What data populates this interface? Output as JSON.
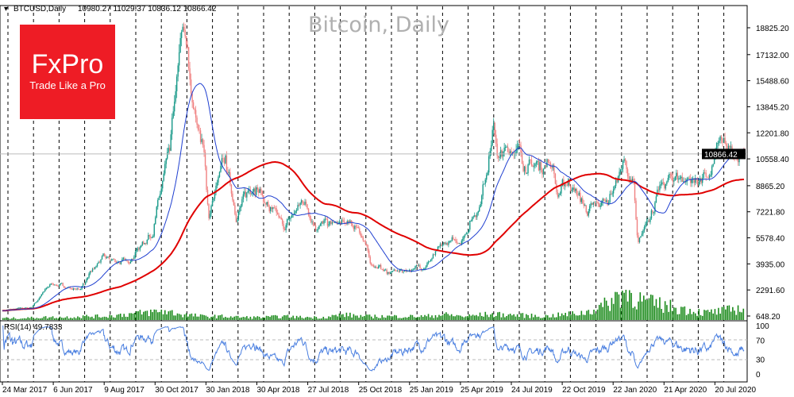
{
  "header": {
    "symbol": "BTCUSD,Daily",
    "ohlc": "10980.27 11029.37 10836.12 10866.42"
  },
  "logo": {
    "brand": "FxPro",
    "tagline": "Trade Like a Pro",
    "color": "#ee1c25"
  },
  "chart_data": {
    "type": "candlestick",
    "title": "Bitcoin, Daily",
    "symbol": "BTCUSD",
    "timeframe": "Daily",
    "current_price": "10866.42",
    "current_price_value": 10866.42,
    "ylim": [
      648.2,
      19671
    ],
    "y_ticks": [
      "18825.20",
      "17132.00",
      "15488.60",
      "13845.20",
      "12201.80",
      "10558.40",
      "8865.20",
      "7221.80",
      "5578.40",
      "3935.00",
      "2291.60",
      "648.20"
    ],
    "x_ticks": [
      "24 Mar 2017",
      "6 Jun 2017",
      "9 Aug 2017",
      "30 Oct 2017",
      "30 Jan 2018",
      "30 Apr 2018",
      "27 Jul 2018",
      "25 Oct 2018",
      "25 Jan 2019",
      "25 Apr 2019",
      "24 Jul 2019",
      "22 Oct 2019",
      "22 Jan 2020",
      "21 Apr 2020",
      "20 Jul 2020"
    ],
    "total_days": 1250,
    "close_anchors_day_price": [
      [
        0,
        1000
      ],
      [
        3,
        1000
      ],
      [
        49,
        1200
      ],
      [
        82,
        2700
      ],
      [
        129,
        2300
      ],
      [
        169,
        4300
      ],
      [
        209,
        4000
      ],
      [
        253,
        6000
      ],
      [
        282,
        11000
      ],
      [
        305,
        19000
      ],
      [
        322,
        14000
      ],
      [
        339,
        11000
      ],
      [
        348,
        7000
      ],
      [
        375,
        10500
      ],
      [
        395,
        7000
      ],
      [
        424,
        9200
      ],
      [
        448,
        7500
      ],
      [
        475,
        6200
      ],
      [
        508,
        8000
      ],
      [
        528,
        6400
      ],
      [
        581,
        6400
      ],
      [
        601,
        6300
      ],
      [
        621,
        4000
      ],
      [
        648,
        3400
      ],
      [
        680,
        3500
      ],
      [
        714,
        3900
      ],
      [
        747,
        5200
      ],
      [
        774,
        5500
      ],
      [
        807,
        8000
      ],
      [
        827,
        12500
      ],
      [
        837,
        10500
      ],
      [
        861,
        11500
      ],
      [
        887,
        10000
      ],
      [
        927,
        10400
      ],
      [
        935,
        8200
      ],
      [
        954,
        9200
      ],
      [
        987,
        7200
      ],
      [
        1020,
        8000
      ],
      [
        1047,
        10300
      ],
      [
        1064,
        8800
      ],
      [
        1071,
        4900
      ],
      [
        1087,
        6800
      ],
      [
        1113,
        8800
      ],
      [
        1133,
        9500
      ],
      [
        1166,
        9200
      ],
      [
        1193,
        9300
      ],
      [
        1206,
        11300
      ],
      [
        1226,
        11600
      ],
      [
        1240,
        10300
      ],
      [
        1246,
        10866.42
      ]
    ],
    "moving_averages": [
      {
        "name": "MA long",
        "period": 200,
        "color": "#e00000"
      },
      {
        "name": "MA short",
        "period": 50,
        "color": "#1f3fd0"
      }
    ],
    "volume_relative": [
      0.1,
      0.1,
      0.15,
      0.15,
      0.2,
      0.2,
      0.3,
      0.4,
      0.5,
      0.3,
      0.2,
      0.2,
      0.15,
      0.15,
      0.2,
      0.15,
      0.15,
      0.3,
      0.2,
      0.2,
      0.2,
      0.2,
      0.3,
      0.2,
      0.3,
      0.3,
      0.25,
      0.2,
      0.3,
      0.4,
      0.8,
      1.6,
      1.0,
      0.8,
      0.6,
      0.4,
      0.5,
      0.7
    ],
    "rsi": {
      "label": "RSI(14) 49.7833",
      "period": 14,
      "levels": [
        "100",
        "70",
        "30",
        "0"
      ],
      "color": "#4a7fe0"
    }
  }
}
